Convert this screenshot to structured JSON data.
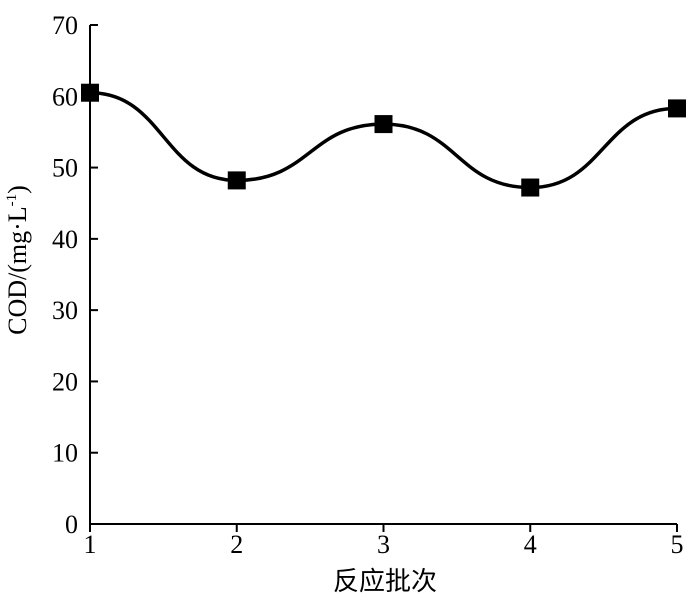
{
  "chart_data": {
    "type": "line",
    "x": [
      1,
      2,
      3,
      4,
      5
    ],
    "values": [
      60.5,
      48.2,
      56.1,
      47.2,
      58.3
    ],
    "xlabel": "反应批次",
    "ylabel_main": "COD/(mg·L",
    "ylabel_sup": "-1",
    "ylabel_close": ")",
    "xlim": [
      1,
      5
    ],
    "ylim": [
      0,
      70
    ],
    "xticks": [
      "1",
      "2",
      "3",
      "4",
      "5"
    ],
    "yticks": [
      "0",
      "10",
      "20",
      "30",
      "40",
      "50",
      "60",
      "70"
    ],
    "marker": "square",
    "line_style": "smooth",
    "grid": false,
    "color": "#000000"
  }
}
